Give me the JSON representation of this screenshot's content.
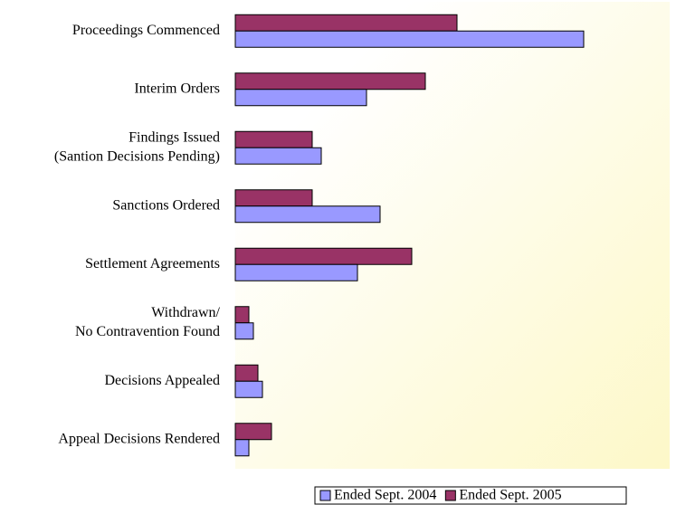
{
  "chart_data": {
    "type": "bar",
    "orientation": "horizontal",
    "categories": [
      [
        "Proceedings Commenced"
      ],
      [
        "Interim Orders"
      ],
      [
        "Findings Issued",
        "(Santion Decisions Pending)"
      ],
      [
        "Sanctions Ordered"
      ],
      [
        "Settlement Agreements"
      ],
      [
        "Withdrawn/",
        "No Contravention Found"
      ],
      [
        "Decisions Appealed"
      ],
      [
        "Appeal Decisions Rendered"
      ]
    ],
    "series": [
      {
        "name": "Ended Sept. 2004",
        "color": "#9999ff",
        "values": [
          77,
          29,
          19,
          32,
          27,
          4,
          6,
          3
        ]
      },
      {
        "name": "Ended Sept. 2005",
        "color": "#993366",
        "values": [
          49,
          42,
          17,
          17,
          39,
          3,
          5,
          8
        ]
      }
    ],
    "xlim": [
      0,
      96
    ],
    "legend": "bottom"
  }
}
